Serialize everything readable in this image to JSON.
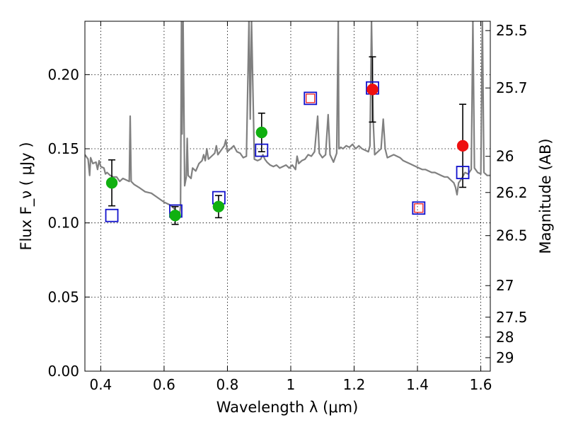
{
  "chart_data": {
    "type": "scatter",
    "xlabel": "Wavelength  λ (μm)",
    "ylabel": "Flux  F_ν  ( μJy )",
    "y2label": "Magnitude (AB)",
    "xlim": [
      0.35,
      1.63
    ],
    "ylim": [
      0.0,
      0.236
    ],
    "x_ticks": [
      0.4,
      0.6,
      0.8,
      1.0,
      1.2,
      1.4,
      1.6
    ],
    "x_tick_labels": [
      "0.4",
      "0.6",
      "0.8",
      "1",
      "1.2",
      "1.4",
      "1.6"
    ],
    "y_ticks": [
      0.0,
      0.05,
      0.1,
      0.15,
      0.2
    ],
    "y_tick_labels": [
      "0.00",
      "0.05",
      "0.10",
      "0.15",
      "0.20"
    ],
    "y2_ticks": [
      {
        "label": "25.5",
        "flux": 0.2297
      },
      {
        "label": "25.7",
        "flux": 0.191
      },
      {
        "label": "26",
        "flux": 0.1449
      },
      {
        "label": "26.2",
        "flux": 0.1205
      },
      {
        "label": "26.5",
        "flux": 0.0914
      },
      {
        "label": "27",
        "flux": 0.0577
      },
      {
        "label": "27.5",
        "flux": 0.0364
      },
      {
        "label": "28",
        "flux": 0.023
      },
      {
        "label": "29",
        "flux": 0.0091
      }
    ],
    "grid": true,
    "series": [
      {
        "marker": "circle",
        "color": "#10b010",
        "points": [
          {
            "x": 0.435,
            "y": 0.127,
            "err": 0.0155
          },
          {
            "x": 0.635,
            "y": 0.105,
            "err": 0.006
          },
          {
            "x": 0.772,
            "y": 0.111,
            "err": 0.0075
          },
          {
            "x": 0.908,
            "y": 0.161,
            "err": 0.013
          }
        ]
      },
      {
        "marker": "circle",
        "color": "#ee1010",
        "points": [
          {
            "x": 1.258,
            "y": 0.19,
            "err": 0.022
          },
          {
            "x": 1.543,
            "y": 0.152,
            "err": 0.028
          }
        ]
      },
      {
        "marker": "open-square",
        "color": "#1010cc",
        "points": [
          {
            "x": 0.435,
            "y": 0.105
          },
          {
            "x": 0.637,
            "y": 0.108
          },
          {
            "x": 0.773,
            "y": 0.117
          },
          {
            "x": 0.908,
            "y": 0.149
          },
          {
            "x": 1.062,
            "y": 0.184
          },
          {
            "x": 1.258,
            "y": 0.191
          },
          {
            "x": 1.404,
            "y": 0.11
          },
          {
            "x": 1.543,
            "y": 0.134
          }
        ]
      },
      {
        "marker": "open-square-small",
        "color": "#ee1010",
        "points": [
          {
            "x": 1.062,
            "y": 0.184
          },
          {
            "x": 1.404,
            "y": 0.11
          }
        ]
      },
      {
        "marker": "line",
        "color": "#808080",
        "points": [
          [
            0.35,
            0.146
          ],
          [
            0.36,
            0.143
          ],
          [
            0.365,
            0.132
          ],
          [
            0.368,
            0.144
          ],
          [
            0.375,
            0.14
          ],
          [
            0.385,
            0.141
          ],
          [
            0.39,
            0.136
          ],
          [
            0.395,
            0.142
          ],
          [
            0.4,
            0.138
          ],
          [
            0.41,
            0.137
          ],
          [
            0.415,
            0.133
          ],
          [
            0.42,
            0.134
          ],
          [
            0.43,
            0.132
          ],
          [
            0.44,
            0.131
          ],
          [
            0.45,
            0.131
          ],
          [
            0.46,
            0.128
          ],
          [
            0.47,
            0.13
          ],
          [
            0.48,
            0.129
          ],
          [
            0.49,
            0.128
          ],
          [
            0.493,
            0.172
          ],
          [
            0.496,
            0.128
          ],
          [
            0.505,
            0.126
          ],
          [
            0.52,
            0.124
          ],
          [
            0.54,
            0.121
          ],
          [
            0.56,
            0.12
          ],
          [
            0.58,
            0.117
          ],
          [
            0.6,
            0.114
          ],
          [
            0.62,
            0.112
          ],
          [
            0.64,
            0.108
          ],
          [
            0.65,
            0.106
          ],
          [
            0.652,
            0.112
          ],
          [
            0.655,
            0.236
          ],
          [
            0.657,
            0.16
          ],
          [
            0.66,
            0.236
          ],
          [
            0.665,
            0.125
          ],
          [
            0.67,
            0.131
          ],
          [
            0.673,
            0.157
          ],
          [
            0.676,
            0.132
          ],
          [
            0.685,
            0.13
          ],
          [
            0.69,
            0.137
          ],
          [
            0.7,
            0.135
          ],
          [
            0.71,
            0.14
          ],
          [
            0.72,
            0.142
          ],
          [
            0.725,
            0.146
          ],
          [
            0.73,
            0.142
          ],
          [
            0.735,
            0.15
          ],
          [
            0.74,
            0.143
          ],
          [
            0.75,
            0.145
          ],
          [
            0.76,
            0.147
          ],
          [
            0.765,
            0.152
          ],
          [
            0.77,
            0.146
          ],
          [
            0.78,
            0.149
          ],
          [
            0.79,
            0.152
          ],
          [
            0.795,
            0.156
          ],
          [
            0.8,
            0.148
          ],
          [
            0.81,
            0.15
          ],
          [
            0.82,
            0.152
          ],
          [
            0.83,
            0.148
          ],
          [
            0.84,
            0.147
          ],
          [
            0.85,
            0.144
          ],
          [
            0.86,
            0.145
          ],
          [
            0.868,
            0.236
          ],
          [
            0.872,
            0.17
          ],
          [
            0.876,
            0.236
          ],
          [
            0.885,
            0.143
          ],
          [
            0.895,
            0.142
          ],
          [
            0.905,
            0.143
          ],
          [
            0.912,
            0.146
          ],
          [
            0.918,
            0.143
          ],
          [
            0.925,
            0.141
          ],
          [
            0.935,
            0.139
          ],
          [
            0.945,
            0.138
          ],
          [
            0.955,
            0.139
          ],
          [
            0.965,
            0.137
          ],
          [
            0.975,
            0.138
          ],
          [
            0.985,
            0.139
          ],
          [
            0.995,
            0.137
          ],
          [
            1.005,
            0.139
          ],
          [
            1.015,
            0.136
          ],
          [
            1.02,
            0.145
          ],
          [
            1.025,
            0.14
          ],
          [
            1.035,
            0.142
          ],
          [
            1.045,
            0.143
          ],
          [
            1.055,
            0.146
          ],
          [
            1.065,
            0.145
          ],
          [
            1.075,
            0.148
          ],
          [
            1.085,
            0.172
          ],
          [
            1.09,
            0.147
          ],
          [
            1.1,
            0.144
          ],
          [
            1.11,
            0.146
          ],
          [
            1.118,
            0.173
          ],
          [
            1.124,
            0.146
          ],
          [
            1.135,
            0.141
          ],
          [
            1.145,
            0.147
          ],
          [
            1.15,
            0.236
          ],
          [
            1.152,
            0.15
          ],
          [
            1.158,
            0.151
          ],
          [
            1.165,
            0.15
          ],
          [
            1.175,
            0.152
          ],
          [
            1.185,
            0.151
          ],
          [
            1.195,
            0.153
          ],
          [
            1.205,
            0.15
          ],
          [
            1.215,
            0.152
          ],
          [
            1.225,
            0.15
          ],
          [
            1.235,
            0.149
          ],
          [
            1.245,
            0.148
          ],
          [
            1.25,
            0.152
          ],
          [
            1.255,
            0.236
          ],
          [
            1.26,
            0.17
          ],
          [
            1.265,
            0.146
          ],
          [
            1.275,
            0.148
          ],
          [
            1.285,
            0.15
          ],
          [
            1.292,
            0.17
          ],
          [
            1.298,
            0.15
          ],
          [
            1.305,
            0.144
          ],
          [
            1.315,
            0.145
          ],
          [
            1.325,
            0.146
          ],
          [
            1.335,
            0.145
          ],
          [
            1.345,
            0.144
          ],
          [
            1.355,
            0.142
          ],
          [
            1.365,
            0.141
          ],
          [
            1.375,
            0.14
          ],
          [
            1.385,
            0.139
          ],
          [
            1.395,
            0.138
          ],
          [
            1.405,
            0.137
          ],
          [
            1.415,
            0.136
          ],
          [
            1.425,
            0.136
          ],
          [
            1.435,
            0.135
          ],
          [
            1.445,
            0.134
          ],
          [
            1.455,
            0.134
          ],
          [
            1.465,
            0.133
          ],
          [
            1.475,
            0.132
          ],
          [
            1.485,
            0.131
          ],
          [
            1.495,
            0.131
          ],
          [
            1.505,
            0.129
          ],
          [
            1.515,
            0.127
          ],
          [
            1.52,
            0.124
          ],
          [
            1.525,
            0.119
          ],
          [
            1.53,
            0.127
          ],
          [
            1.54,
            0.13
          ],
          [
            1.55,
            0.134
          ],
          [
            1.56,
            0.133
          ],
          [
            1.57,
            0.136
          ],
          [
            1.575,
            0.236
          ],
          [
            1.58,
            0.137
          ],
          [
            1.59,
            0.134
          ],
          [
            1.6,
            0.133
          ],
          [
            1.605,
            0.236
          ],
          [
            1.61,
            0.134
          ],
          [
            1.62,
            0.132
          ],
          [
            1.63,
            0.132
          ]
        ]
      }
    ]
  }
}
